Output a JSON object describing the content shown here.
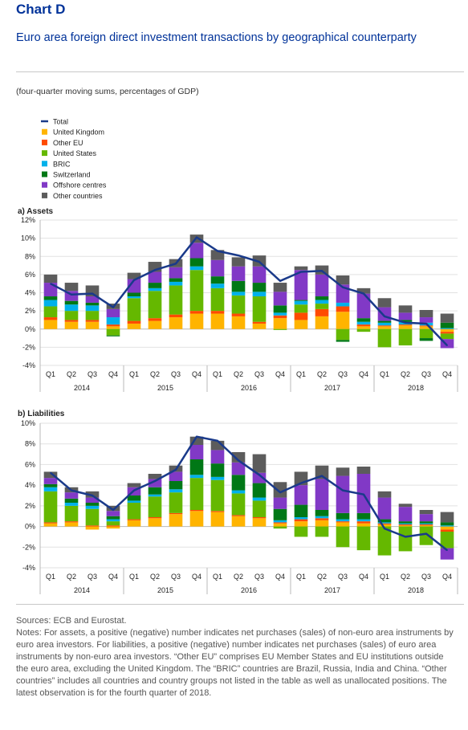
{
  "header": {
    "title": "Chart D",
    "subtitle": "Euro area foreign direct investment transactions by geographical counterparty",
    "units": "(four-quarter moving sums, percentages of GDP)"
  },
  "footer": {
    "sources": "Sources: ECB and Eurostat.",
    "notes": "Notes: For assets, a positive (negative) number indicates net purchases (sales) of non-euro area instruments by euro area investors. For liabilities, a positive (negative) number indicates net purchases (sales) of euro area instruments by non-euro area investors. “Other EU” comprises EU Member States and EU institutions outside the euro area, excluding the United Kingdom. The “BRIC” countries are Brazil, Russia, India and China. “Other countries” includes all countries and country groups not listed in the table as well as unallocated positions. The latest observation is for the fourth quarter of 2018."
  },
  "legend": [
    {
      "name": "Total",
      "color": "#1a3a8a",
      "kind": "line"
    },
    {
      "name": "United Kingdom",
      "color": "#ffb400",
      "kind": "box"
    },
    {
      "name": "Other EU",
      "color": "#ff4b00",
      "kind": "box"
    },
    {
      "name": "United States",
      "color": "#65b800",
      "kind": "box"
    },
    {
      "name": "BRIC",
      "color": "#00b1ea",
      "kind": "box"
    },
    {
      "name": "Switzerland",
      "color": "#007816",
      "kind": "box"
    },
    {
      "name": "Offshore centres",
      "color": "#8139c6",
      "kind": "box"
    },
    {
      "name": "Other countries",
      "color": "#5c5c5c",
      "kind": "box"
    }
  ],
  "chart_data": [
    {
      "type": "bar",
      "stacked": true,
      "title": "a) Assets",
      "ylim": [
        -4,
        12
      ],
      "yticks": [
        "-4%",
        "-2%",
        "0%",
        "2%",
        "4%",
        "6%",
        "8%",
        "10%",
        "12%"
      ],
      "categories": [
        "Q1",
        "Q2",
        "Q3",
        "Q4",
        "Q1",
        "Q2",
        "Q3",
        "Q4",
        "Q1",
        "Q2",
        "Q3",
        "Q4",
        "Q1",
        "Q2",
        "Q3",
        "Q4",
        "Q1",
        "Q2",
        "Q3",
        "Q4"
      ],
      "years": [
        "2014",
        "2015",
        "2016",
        "2017",
        "2018"
      ],
      "series": [
        {
          "name": "United Kingdom",
          "values": [
            1.0,
            0.8,
            0.8,
            0.3,
            0.6,
            0.9,
            1.3,
            1.7,
            1.7,
            1.4,
            0.6,
            1.2,
            1.0,
            1.4,
            1.9,
            0.3,
            0.3,
            0.4,
            0.3,
            -0.3
          ]
        },
        {
          "name": "Other EU",
          "values": [
            0.3,
            0.2,
            0.2,
            0.2,
            0.3,
            0.3,
            0.3,
            0.3,
            0.3,
            0.3,
            0.2,
            0.3,
            0.8,
            0.8,
            0.6,
            0.2,
            0.1,
            0.1,
            0.1,
            -0.2
          ]
        },
        {
          "name": "United States",
          "values": [
            1.2,
            1.0,
            1.0,
            -0.7,
            2.5,
            3.0,
            3.2,
            4.5,
            2.5,
            2.0,
            2.8,
            -0.1,
            0.9,
            0.6,
            -1.2,
            -0.3,
            -2.0,
            -1.8,
            -1.0,
            -0.6
          ]
        },
        {
          "name": "BRIC",
          "values": [
            0.7,
            0.7,
            0.6,
            0.8,
            0.2,
            0.3,
            0.4,
            0.4,
            0.5,
            0.4,
            0.5,
            0.3,
            0.4,
            0.4,
            0.4,
            0.3,
            0.3,
            0.3,
            0.3,
            0.1
          ]
        },
        {
          "name": "Switzerland",
          "values": [
            0.4,
            0.4,
            0.3,
            -0.1,
            0.4,
            0.6,
            0.4,
            0.9,
            0.8,
            1.2,
            1.0,
            0.8,
            0.1,
            0.4,
            -0.2,
            0.4,
            0.2,
            0.2,
            -0.3,
            0.6
          ]
        },
        {
          "name": "Offshore centres",
          "values": [
            1.5,
            1.1,
            0.7,
            0.9,
            1.5,
            1.2,
            1.2,
            1.7,
            1.8,
            1.6,
            1.8,
            1.5,
            3.3,
            2.4,
            2.0,
            2.7,
            1.5,
            0.8,
            0.6,
            -1.0
          ]
        },
        {
          "name": "Other countries",
          "values": [
            0.9,
            0.9,
            1.2,
            0.6,
            0.7,
            1.1,
            0.9,
            0.9,
            1.1,
            1.0,
            1.2,
            1.0,
            0.4,
            1.0,
            1.0,
            0.6,
            1.0,
            0.8,
            0.8,
            1.0
          ]
        }
      ],
      "total": [
        5.0,
        3.8,
        3.9,
        2.4,
        5.4,
        6.5,
        7.2,
        10.1,
        8.6,
        8.1,
        7.4,
        5.3,
        6.3,
        6.4,
        4.6,
        3.9,
        1.4,
        0.7,
        0.6,
        -1.8
      ]
    },
    {
      "type": "bar",
      "stacked": true,
      "title": "b) Liabilities",
      "ylim": [
        -4,
        10
      ],
      "yticks": [
        "-4%",
        "-2%",
        "0%",
        "2%",
        "4%",
        "6%",
        "8%",
        "10%"
      ],
      "categories": [
        "Q1",
        "Q2",
        "Q3",
        "Q4",
        "Q1",
        "Q2",
        "Q3",
        "Q4",
        "Q1",
        "Q2",
        "Q3",
        "Q4",
        "Q1",
        "Q2",
        "Q3",
        "Q4",
        "Q1",
        "Q2",
        "Q3",
        "Q4"
      ],
      "years": [
        "2014",
        "2015",
        "2016",
        "2017",
        "2018"
      ],
      "series": [
        {
          "name": "United Kingdom",
          "values": [
            0.3,
            0.4,
            -0.3,
            -0.2,
            0.6,
            0.8,
            1.2,
            1.5,
            1.4,
            1.0,
            0.8,
            0.3,
            0.5,
            0.6,
            0.4,
            0.3,
            0.2,
            0.1,
            0.1,
            -0.3
          ]
        },
        {
          "name": "Other EU",
          "values": [
            0.1,
            0.1,
            0.1,
            0.1,
            0.1,
            0.1,
            0.1,
            0.1,
            0.1,
            0.1,
            0.1,
            0.1,
            0.2,
            0.2,
            0.1,
            0.2,
            0.1,
            0.1,
            0.1,
            -0.2
          ]
        },
        {
          "name": "United States",
          "values": [
            3.0,
            1.5,
            1.6,
            0.4,
            1.6,
            2.0,
            2.0,
            3.1,
            3.0,
            2.1,
            1.6,
            -0.2,
            -1.0,
            -1.0,
            -2.0,
            -2.3,
            -2.8,
            -2.4,
            -1.8,
            -1.6
          ]
        },
        {
          "name": "BRIC",
          "values": [
            0.4,
            0.3,
            0.3,
            0.2,
            0.2,
            0.2,
            0.3,
            0.3,
            0.3,
            0.3,
            0.3,
            0.2,
            0.2,
            0.2,
            0.2,
            0.2,
            0.1,
            0.1,
            0.1,
            0.1
          ]
        },
        {
          "name": "Switzerland",
          "values": [
            0.3,
            0.4,
            0.3,
            0.3,
            0.5,
            0.7,
            0.8,
            1.5,
            1.3,
            1.5,
            1.4,
            1.1,
            1.2,
            0.6,
            0.6,
            0.6,
            0.3,
            0.2,
            0.2,
            0.3
          ]
        },
        {
          "name": "Offshore centres",
          "values": [
            0.6,
            0.6,
            0.5,
            0.5,
            0.8,
            0.8,
            0.9,
            1.4,
            1.3,
            1.2,
            1.0,
            1.1,
            1.9,
            3.0,
            3.6,
            3.8,
            2.1,
            1.4,
            0.7,
            -1.1
          ]
        },
        {
          "name": "Other countries",
          "values": [
            0.6,
            0.5,
            0.6,
            0.5,
            0.4,
            0.5,
            0.6,
            0.8,
            0.9,
            1.0,
            1.8,
            1.5,
            1.3,
            1.3,
            0.8,
            0.7,
            0.6,
            0.3,
            0.4,
            1.0
          ]
        }
      ],
      "total": [
        5.2,
        3.5,
        3.0,
        1.6,
        3.5,
        4.4,
        5.5,
        8.7,
        8.3,
        6.4,
        5.0,
        3.3,
        4.2,
        4.9,
        3.5,
        3.1,
        -0.2,
        -1.0,
        -0.7,
        -2.3
      ]
    }
  ]
}
